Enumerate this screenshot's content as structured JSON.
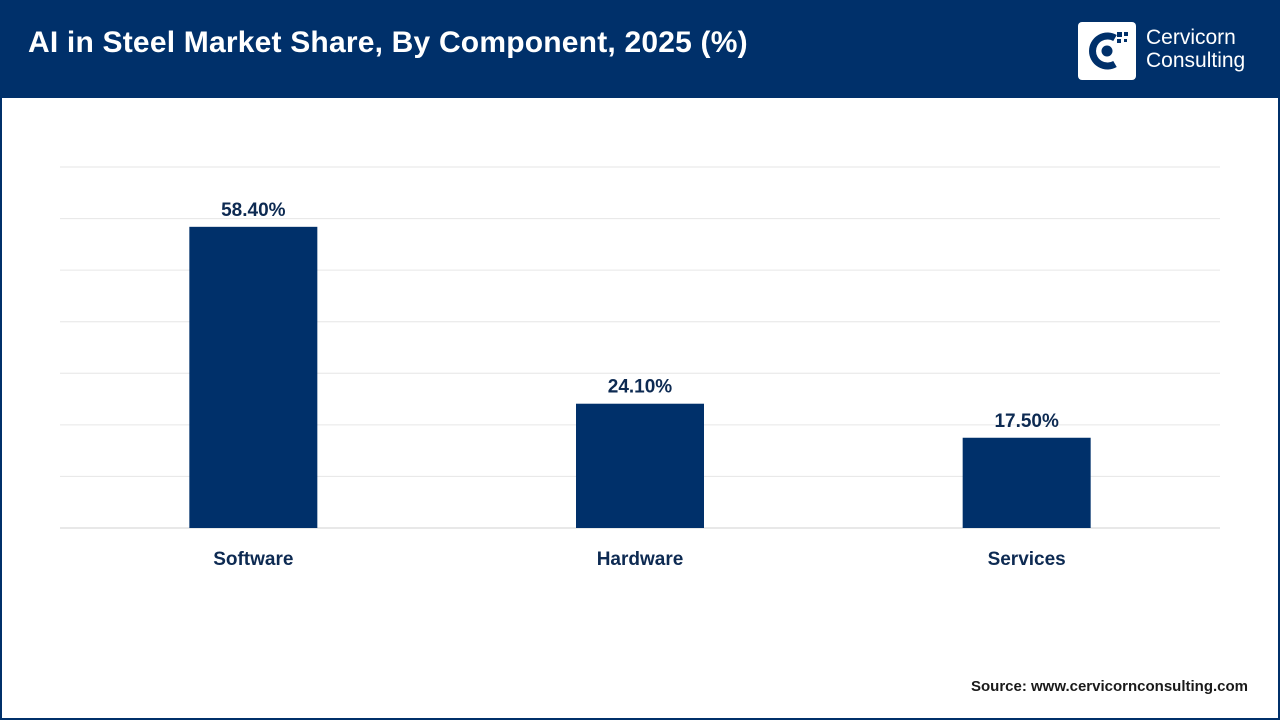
{
  "header": {
    "title": "AI in Steel Market Share, By Component, 2025 (%)",
    "logo_line1": "Cervicorn",
    "logo_line2": "Consulting"
  },
  "colors": {
    "header_bg": "#00306a",
    "bar": "#00306a",
    "label": "#0d2a52",
    "grid": "#e6e6e6"
  },
  "chart_data": {
    "type": "bar",
    "title": "AI in Steel Market Share, By Component, 2025 (%)",
    "categories": [
      "Software",
      "Hardware",
      "Services"
    ],
    "values": [
      58.4,
      24.1,
      17.5
    ],
    "value_labels": [
      "58.40%",
      "24.10%",
      "17.50%"
    ],
    "xlabel": "",
    "ylabel": "",
    "ylim": [
      0,
      70
    ],
    "grid": true,
    "legend": "none"
  },
  "footer": {
    "source": "Source: www.cervicornconsulting.com"
  }
}
